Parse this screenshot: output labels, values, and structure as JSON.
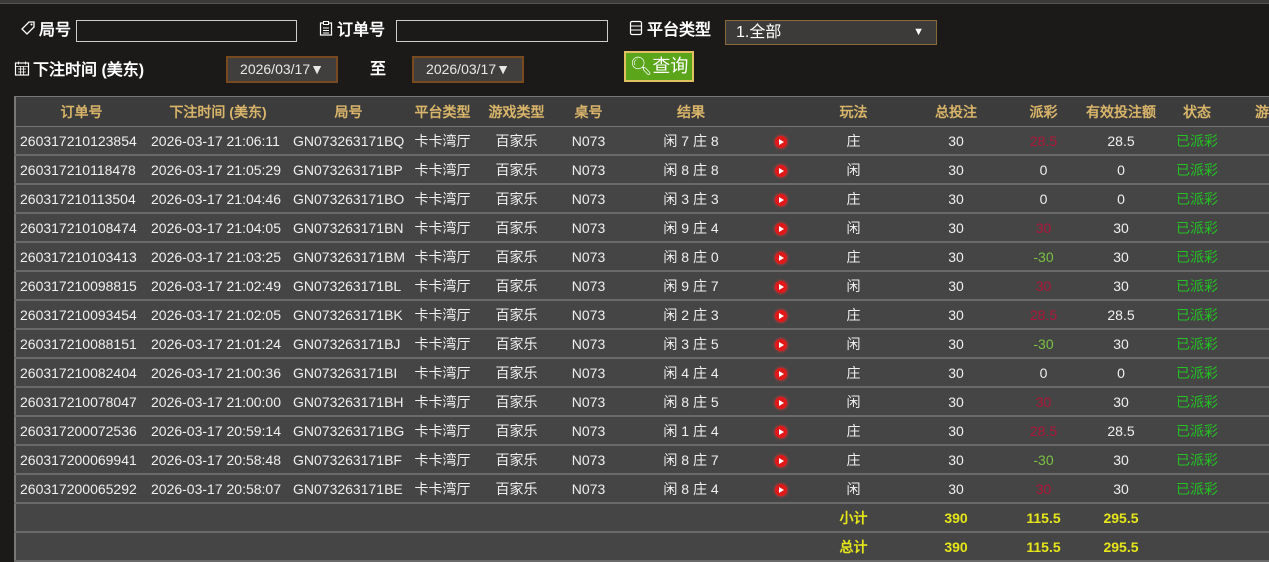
{
  "filters": {
    "round_label": "局号",
    "round_value": "",
    "order_label": "订单号",
    "order_value": "",
    "platform_label": "平台类型",
    "platform_value": "1.全部",
    "time_label": "下注时间 (美东)",
    "date_from": "2026/03/17▼",
    "to_label": "至",
    "date_to": "2026/03/17▼",
    "query_label": "查询"
  },
  "colors": {
    "header_text": "#d9b56a",
    "payout_positive": "#b0173a",
    "payout_negative": "#7ac142",
    "status": "#22c322",
    "totals": "#e6e619",
    "query_button": "#5aa51a"
  },
  "table": {
    "columns": [
      "订单号",
      "下注时间 (美东)",
      "局号",
      "平台类型",
      "游戏类型",
      "桌号",
      "结果",
      "",
      "玩法",
      "总投注",
      "派彩",
      "有效投注额",
      "状态",
      "游戏"
    ],
    "rows": [
      {
        "order": "260317210123854",
        "time": "2026-03-17 21:06:11",
        "round": "GN073263171BQ",
        "platform": "卡卡湾厅",
        "game": "百家乐",
        "table": "N073",
        "result": "闲 7 庄 8",
        "play": "庄",
        "bet": "30",
        "payout": "28.5",
        "payout_tone": "positive",
        "valid": "28.5",
        "status": "已派彩"
      },
      {
        "order": "260317210118478",
        "time": "2026-03-17 21:05:29",
        "round": "GN073263171BP",
        "platform": "卡卡湾厅",
        "game": "百家乐",
        "table": "N073",
        "result": "闲 8 庄 8",
        "play": "闲",
        "bet": "30",
        "payout": "0",
        "payout_tone": "zero",
        "valid": "0",
        "status": "已派彩"
      },
      {
        "order": "260317210113504",
        "time": "2026-03-17 21:04:46",
        "round": "GN073263171BO",
        "platform": "卡卡湾厅",
        "game": "百家乐",
        "table": "N073",
        "result": "闲 3 庄 3",
        "play": "庄",
        "bet": "30",
        "payout": "0",
        "payout_tone": "zero",
        "valid": "0",
        "status": "已派彩"
      },
      {
        "order": "260317210108474",
        "time": "2026-03-17 21:04:05",
        "round": "GN073263171BN",
        "platform": "卡卡湾厅",
        "game": "百家乐",
        "table": "N073",
        "result": "闲 9 庄 4",
        "play": "闲",
        "bet": "30",
        "payout": "30",
        "payout_tone": "positive",
        "valid": "30",
        "status": "已派彩"
      },
      {
        "order": "260317210103413",
        "time": "2026-03-17 21:03:25",
        "round": "GN073263171BM",
        "platform": "卡卡湾厅",
        "game": "百家乐",
        "table": "N073",
        "result": "闲 8 庄 0",
        "play": "庄",
        "bet": "30",
        "payout": "-30",
        "payout_tone": "negative",
        "valid": "30",
        "status": "已派彩"
      },
      {
        "order": "260317210098815",
        "time": "2026-03-17 21:02:49",
        "round": "GN073263171BL",
        "platform": "卡卡湾厅",
        "game": "百家乐",
        "table": "N073",
        "result": "闲 9 庄 7",
        "play": "闲",
        "bet": "30",
        "payout": "30",
        "payout_tone": "positive",
        "valid": "30",
        "status": "已派彩"
      },
      {
        "order": "260317210093454",
        "time": "2026-03-17 21:02:05",
        "round": "GN073263171BK",
        "platform": "卡卡湾厅",
        "game": "百家乐",
        "table": "N073",
        "result": "闲 2 庄 3",
        "play": "庄",
        "bet": "30",
        "payout": "28.5",
        "payout_tone": "positive",
        "valid": "28.5",
        "status": "已派彩"
      },
      {
        "order": "260317210088151",
        "time": "2026-03-17 21:01:24",
        "round": "GN073263171BJ",
        "platform": "卡卡湾厅",
        "game": "百家乐",
        "table": "N073",
        "result": "闲 3 庄 5",
        "play": "闲",
        "bet": "30",
        "payout": "-30",
        "payout_tone": "negative",
        "valid": "30",
        "status": "已派彩"
      },
      {
        "order": "260317210082404",
        "time": "2026-03-17 21:00:36",
        "round": "GN073263171BI",
        "platform": "卡卡湾厅",
        "game": "百家乐",
        "table": "N073",
        "result": "闲 4 庄 4",
        "play": "庄",
        "bet": "30",
        "payout": "0",
        "payout_tone": "zero",
        "valid": "0",
        "status": "已派彩"
      },
      {
        "order": "260317210078047",
        "time": "2026-03-17 21:00:00",
        "round": "GN073263171BH",
        "platform": "卡卡湾厅",
        "game": "百家乐",
        "table": "N073",
        "result": "闲 8 庄 5",
        "play": "闲",
        "bet": "30",
        "payout": "30",
        "payout_tone": "positive",
        "valid": "30",
        "status": "已派彩"
      },
      {
        "order": "260317200072536",
        "time": "2026-03-17 20:59:14",
        "round": "GN073263171BG",
        "platform": "卡卡湾厅",
        "game": "百家乐",
        "table": "N073",
        "result": "闲 1 庄 4",
        "play": "庄",
        "bet": "30",
        "payout": "28.5",
        "payout_tone": "positive",
        "valid": "28.5",
        "status": "已派彩"
      },
      {
        "order": "260317200069941",
        "time": "2026-03-17 20:58:48",
        "round": "GN073263171BF",
        "platform": "卡卡湾厅",
        "game": "百家乐",
        "table": "N073",
        "result": "闲 8 庄 7",
        "play": "庄",
        "bet": "30",
        "payout": "-30",
        "payout_tone": "negative",
        "valid": "30",
        "status": "已派彩"
      },
      {
        "order": "260317200065292",
        "time": "2026-03-17 20:58:07",
        "round": "GN073263171BE",
        "platform": "卡卡湾厅",
        "game": "百家乐",
        "table": "N073",
        "result": "闲 8 庄 4",
        "play": "闲",
        "bet": "30",
        "payout": "30",
        "payout_tone": "positive",
        "valid": "30",
        "status": "已派彩"
      }
    ],
    "subtotal": {
      "label": "小计",
      "bet": "390",
      "payout": "115.5",
      "valid": "295.5"
    },
    "total": {
      "label": "总计",
      "bet": "390",
      "payout": "115.5",
      "valid": "295.5"
    }
  }
}
